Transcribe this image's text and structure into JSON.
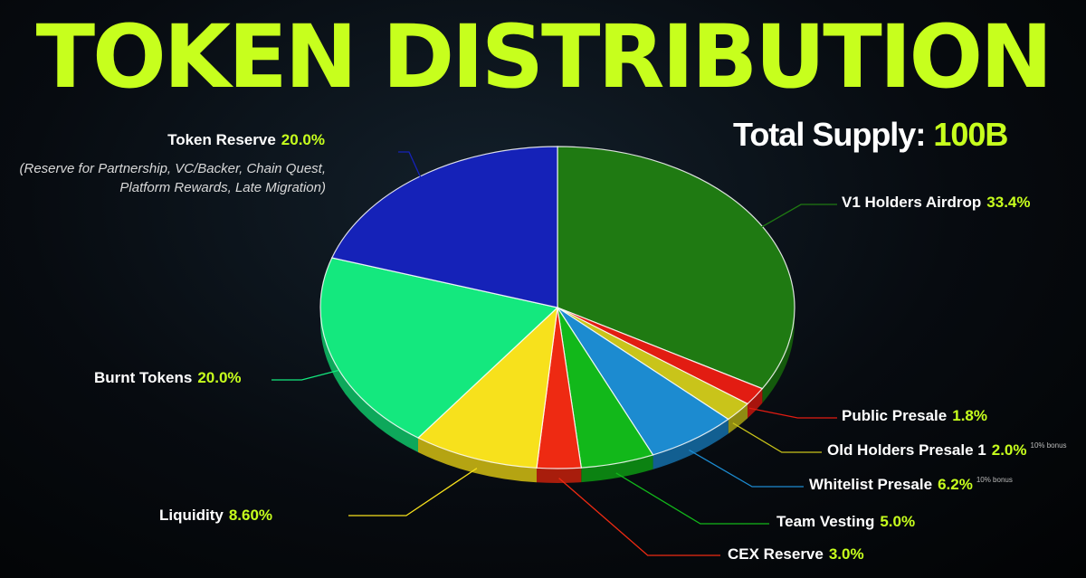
{
  "header": {
    "title": "TOKEN DISTRIBUTION",
    "supply_label": "Total Supply:",
    "supply_value": "100B"
  },
  "chart_data": {
    "type": "pie",
    "title": "TOKEN DISTRIBUTION",
    "slices": [
      {
        "label": "V1 Holders Airdrop",
        "value": 33.4,
        "display": "33.4%",
        "color": "#1f7a12",
        "side": "#145a0c"
      },
      {
        "label": "Public Presale",
        "value": 1.8,
        "display": "1.8%",
        "color": "#e21c12",
        "side": "#a8140d"
      },
      {
        "label": "Old Holders Presale 1",
        "value": 2.0,
        "display": "2.0%",
        "color": "#c9c41a",
        "side": "#8f8b12",
        "note": "10% bonus"
      },
      {
        "label": "Whitelist Presale",
        "value": 6.2,
        "display": "6.2%",
        "color": "#1c8bd0",
        "side": "#125f91",
        "note": "10% bonus"
      },
      {
        "label": "Team Vesting",
        "value": 5.0,
        "display": "5.0%",
        "color": "#12b81a",
        "side": "#0c8212"
      },
      {
        "label": "CEX Reserve",
        "value": 3.0,
        "display": "3.0%",
        "color": "#ee2a12",
        "side": "#a81d0c"
      },
      {
        "label": "Liquidity",
        "value": 8.6,
        "display": "8.60%",
        "color": "#f7e11c",
        "side": "#b5a412"
      },
      {
        "label": "Burnt Tokens",
        "value": 20.0,
        "display": "20.0%",
        "color": "#14e87e",
        "side": "#0ea85b"
      },
      {
        "label": "Token Reserve",
        "value": 20.0,
        "display": "20.0%",
        "color": "#1522b8",
        "side": "#0e1780",
        "description": "(Reserve for Partnership, VC/Backer, Chain Quest, Platform Rewards, Late Migration)"
      }
    ]
  }
}
